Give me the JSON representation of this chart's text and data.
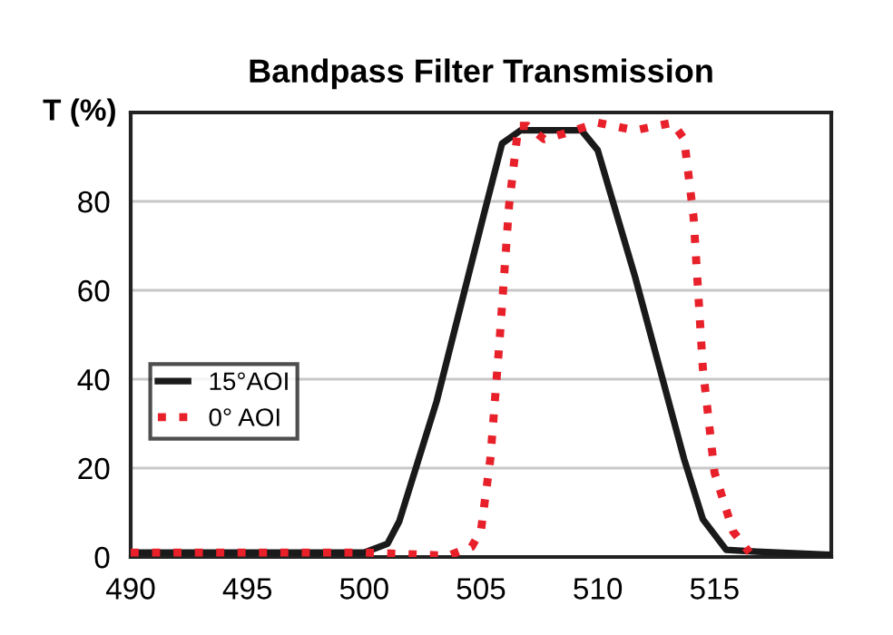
{
  "chart_data": {
    "type": "line",
    "title": "Bandpass Filter Transmission",
    "ylabel": "T (%)",
    "series": [
      {
        "name": "15°AOI",
        "color": "#1a1a1a",
        "line_style": "solid",
        "x": [
          490,
          500,
          501,
          501.5,
          503.1,
          505.1,
          505.9,
          506.7,
          509.3,
          510,
          511.6,
          513.7,
          514.5,
          515.5,
          516.8,
          520
        ],
        "values": [
          1,
          1,
          3,
          8,
          35,
          76.6,
          93,
          96,
          96,
          91.5,
          63,
          22,
          8.5,
          1.6,
          1.2,
          0.5
        ]
      },
      {
        "name": "0° AOI",
        "color": "#e8202a",
        "line_style": "dotted",
        "x": [
          490,
          500,
          503.6,
          504.6,
          505,
          505.4,
          505.8,
          506.2,
          506.6,
          507,
          507.7,
          508.8,
          510,
          511.6,
          513.2,
          513.7,
          514.1,
          514.5,
          515,
          515.8,
          516.5
        ],
        "values": [
          1,
          1,
          0.3,
          2.3,
          6,
          22,
          49,
          79,
          97,
          97,
          94,
          95.6,
          97.7,
          96,
          97.7,
          94,
          76.6,
          42.5,
          19,
          5.7,
          1
        ]
      }
    ],
    "xlim": [
      490,
      520
    ],
    "ylim": [
      0,
      100
    ],
    "xticks": [
      490,
      495,
      500,
      505,
      510,
      515
    ],
    "yticks": [
      0,
      20,
      40,
      60,
      80
    ],
    "grid": "y",
    "legend": "center left",
    "marker": "none"
  }
}
